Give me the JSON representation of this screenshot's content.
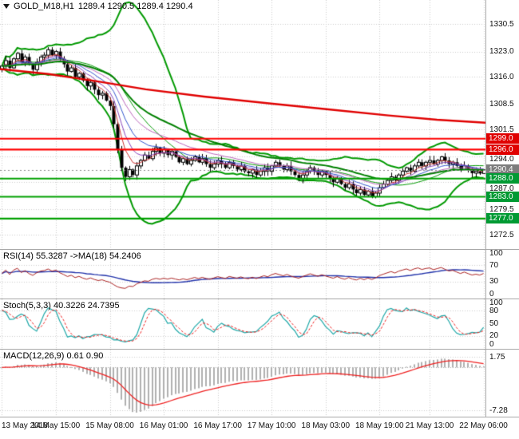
{
  "header": {
    "symbol_tf": "GOLD_M18,H1",
    "ohlc": "1289.4 1290.5 1289.4 1290.4"
  },
  "price_axis": {
    "ticks": [
      1330.5,
      1323.0,
      1316.0,
      1308.5,
      1301.5,
      1294.0,
      1287.0,
      1279.5,
      1272.5
    ],
    "badges": [
      {
        "value": 1299.0,
        "label": "1299.0",
        "bg": "#e00000"
      },
      {
        "value": 1296.0,
        "label": "1296.0",
        "bg": "#e00000"
      },
      {
        "value": 1290.4,
        "label": "1290.4",
        "bg": "#7d7d7d"
      },
      {
        "value": 1288.0,
        "label": "1288.0",
        "bg": "#009a33"
      },
      {
        "value": 1283.0,
        "label": "1283.0",
        "bg": "#009a33"
      },
      {
        "value": 1277.0,
        "label": "1277.0",
        "bg": "#009a33"
      }
    ]
  },
  "subpanels": {
    "rsi": {
      "label": "RSI(14) 55.3287 ->MA(18) 54.2406",
      "ticks": [
        {
          "v": 100,
          "t": "100"
        },
        {
          "v": 70,
          "t": "70"
        },
        {
          "v": 30,
          "t": "30"
        },
        {
          "v": 0,
          "t": "0"
        }
      ]
    },
    "stoch": {
      "label": "Stoch(5,3,3) 40.3226 24.7395",
      "ticks": [
        {
          "v": 100,
          "t": "100"
        },
        {
          "v": 80,
          "t": "80"
        },
        {
          "v": 50,
          "t": "50"
        },
        {
          "v": 20,
          "t": "20"
        },
        {
          "v": 0,
          "t": "0"
        }
      ]
    },
    "macd": {
      "label": "MACD(12,26,9) 0.61 0.90",
      "ticks": [
        {
          "v": 1.75,
          "t": "1.75"
        },
        {
          "v": -7.28,
          "t": "-7.28"
        }
      ]
    }
  },
  "time_axis": {
    "labels": [
      "13 May 2018",
      "14 May 15:00",
      "15 May 08:00",
      "16 May 01:00",
      "16 May 17:00",
      "17 May 10:00",
      "18 May 03:00",
      "18 May 19:00",
      "21 May 13:00",
      "22 May 06:00"
    ],
    "candle_indices": [
      0,
      14,
      28,
      42,
      56,
      70,
      84,
      98,
      111,
      125
    ]
  },
  "chart_data": {
    "type": "candlestick",
    "title": "GOLD_M18,H1",
    "current_price": 1290.4,
    "ohlc_current": {
      "open": 1289.4,
      "high": 1290.5,
      "low": 1289.4,
      "close": 1290.4
    },
    "price_range": {
      "top": 1337.2,
      "bottom": 1268.6
    },
    "closes": [
      1319.0,
      1320.5,
      1318.5,
      1321.0,
      1322.5,
      1320.0,
      1321.5,
      1319.5,
      1318.0,
      1320.0,
      1321.5,
      1322.0,
      1323.5,
      1322.0,
      1323.0,
      1321.0,
      1319.5,
      1317.5,
      1318.5,
      1316.0,
      1317.0,
      1315.0,
      1313.5,
      1314.5,
      1312.5,
      1311.0,
      1311.5,
      1309.5,
      1308.0,
      1303.0,
      1296.0,
      1291.0,
      1288.5,
      1290.5,
      1289.0,
      1291.5,
      1293.0,
      1294.5,
      1293.5,
      1295.5,
      1296.5,
      1295.0,
      1296.0,
      1294.5,
      1295.5,
      1294.0,
      1292.5,
      1293.5,
      1292.0,
      1293.0,
      1294.0,
      1292.5,
      1293.5,
      1292.0,
      1291.0,
      1292.0,
      1293.0,
      1292.0,
      1291.0,
      1292.5,
      1291.5,
      1290.5,
      1291.5,
      1290.0,
      1289.5,
      1290.5,
      1289.0,
      1290.0,
      1291.0,
      1290.0,
      1291.5,
      1292.5,
      1291.5,
      1290.5,
      1291.5,
      1290.0,
      1289.0,
      1288.0,
      1289.0,
      1290.0,
      1291.0,
      1290.0,
      1289.0,
      1290.0,
      1289.0,
      1288.0,
      1287.0,
      1288.0,
      1286.5,
      1285.5,
      1286.5,
      1285.0,
      1284.0,
      1285.0,
      1283.5,
      1284.5,
      1283.0,
      1284.0,
      1285.5,
      1286.5,
      1287.5,
      1288.5,
      1287.5,
      1289.0,
      1290.0,
      1291.0,
      1290.0,
      1291.5,
      1292.5,
      1291.5,
      1292.5,
      1293.0,
      1292.0,
      1293.0,
      1294.0,
      1293.0,
      1292.0,
      1292.5,
      1291.5,
      1290.5,
      1291.5,
      1290.5,
      1289.5,
      1290.0,
      1289.4,
      1290.4
    ],
    "bollinger": {
      "period": 20,
      "deviation": 2.6,
      "color": "#009900"
    },
    "ema_slow": {
      "period": 34,
      "color": "#008000"
    },
    "ema_fan": {
      "periods": [
        5,
        8,
        13,
        21
      ],
      "colors": [
        "#cc3333",
        "#8844bb",
        "#3355cc",
        "#bb66bb"
      ]
    },
    "ma_red": {
      "color": "#e00000",
      "points": [
        [
          0,
          1318.2
        ],
        [
          0.1,
          1316.8
        ],
        [
          0.2,
          1314.8
        ],
        [
          0.3,
          1312.6
        ],
        [
          0.42,
          1310.6
        ],
        [
          0.55,
          1308.8
        ],
        [
          0.68,
          1307.0
        ],
        [
          0.8,
          1305.4
        ],
        [
          0.9,
          1304.2
        ],
        [
          1,
          1303.4
        ]
      ]
    },
    "levels": [
      {
        "value": 1299.0,
        "color": "#ff0000",
        "type": "resistance"
      },
      {
        "value": 1296.0,
        "color": "#ff0000",
        "type": "resistance"
      },
      {
        "value": 1288.0,
        "color": "#00a000",
        "type": "support"
      },
      {
        "value": 1283.0,
        "color": "#00a000",
        "type": "support"
      },
      {
        "value": 1277.0,
        "color": "#00a000",
        "type": "support"
      }
    ],
    "indicators": {
      "rsi": {
        "period": 14,
        "ma_period": 18,
        "value": 55.3287,
        "ma_value": 54.2406,
        "range": [
          0,
          100
        ],
        "guides": [
          70,
          30
        ],
        "colors": {
          "main": "#aa2222",
          "ma": "#2233aa"
        }
      },
      "stoch": {
        "k": 5,
        "d": 3,
        "slowing": 3,
        "value_k": 40.3226,
        "value_d": 24.7395,
        "range": [
          0,
          100
        ],
        "guides": [
          80,
          20
        ],
        "colors": {
          "k": "#1fa8a8",
          "d": "#ee2222"
        }
      },
      "macd": {
        "fast": 12,
        "slow": 26,
        "signal": 9,
        "value": 0.61,
        "signal_value": 0.9,
        "range": [
          3.0,
          -8.3
        ],
        "colors": {
          "hist": "#b0b0b0",
          "signal": "#ee2222"
        }
      }
    }
  }
}
